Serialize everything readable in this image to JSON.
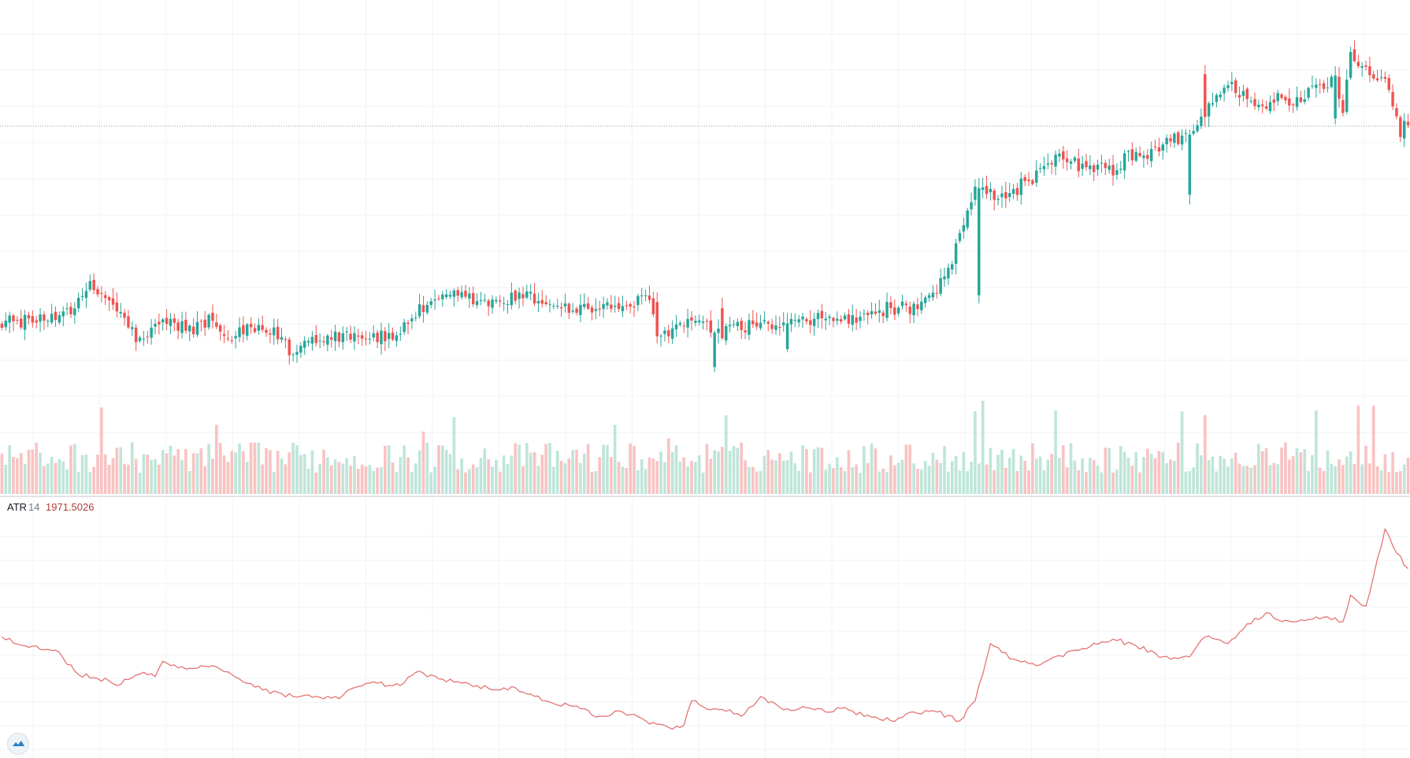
{
  "colors": {
    "up": "#26a69a",
    "down": "#ef5350",
    "up_volume": "#bfe5d9",
    "down_volume": "#f8c3c2",
    "grid": "#f0f3fa",
    "atr_line": "#e57373",
    "price_line": "#9598a1",
    "logo": "#2a7fc9"
  },
  "indicator_legend": {
    "name": "ATR",
    "period": "14",
    "value": "1971.5026"
  },
  "logo_icon": "tradingview-logo-icon",
  "chart_data": [
    {
      "type": "candlestick",
      "title": "",
      "xlabel": "",
      "ylabel": "",
      "ylim": [
        0,
        100
      ],
      "grid": true,
      "price_line": 73.5,
      "anchors": [
        [
          0,
          28
        ],
        [
          10,
          28
        ],
        [
          20,
          32
        ],
        [
          23,
          36
        ],
        [
          28,
          33
        ],
        [
          33,
          27
        ],
        [
          36,
          23
        ],
        [
          42,
          28
        ],
        [
          50,
          26
        ],
        [
          55,
          29
        ],
        [
          58,
          23
        ],
        [
          64,
          26
        ],
        [
          72,
          25
        ],
        [
          76,
          20
        ],
        [
          80,
          24
        ],
        [
          90,
          25
        ],
        [
          102,
          24
        ],
        [
          108,
          30
        ],
        [
          118,
          34
        ],
        [
          128,
          32
        ],
        [
          136,
          34
        ],
        [
          148,
          31
        ],
        [
          158,
          31
        ],
        [
          169,
          33
        ],
        [
          171,
          24
        ],
        [
          174,
          26
        ],
        [
          180,
          28
        ],
        [
          188,
          25
        ],
        [
          194,
          27
        ],
        [
          198,
          27
        ],
        [
          205,
          27
        ],
        [
          217,
          29
        ],
        [
          222,
          28
        ],
        [
          231,
          31
        ],
        [
          240,
          31
        ],
        [
          244,
          35
        ],
        [
          246,
          38
        ],
        [
          248,
          42
        ],
        [
          254,
          60
        ],
        [
          257,
          59
        ],
        [
          262,
          56
        ],
        [
          266,
          60
        ],
        [
          270,
          62
        ],
        [
          276,
          66
        ],
        [
          283,
          64
        ],
        [
          290,
          63
        ],
        [
          294,
          67
        ],
        [
          298,
          66
        ],
        [
          305,
          70
        ],
        [
          311,
          72
        ],
        [
          316,
          80
        ],
        [
          320,
          83
        ],
        [
          326,
          80
        ],
        [
          330,
          78
        ],
        [
          333,
          80
        ],
        [
          337,
          78
        ],
        [
          343,
          83
        ],
        [
          348,
          84
        ],
        [
          350,
          78
        ],
        [
          352,
          90
        ],
        [
          356,
          87
        ],
        [
          361,
          85
        ],
        [
          365,
          72
        ],
        [
          367,
          75
        ]
      ],
      "shocks": [
        {
          "bar": 171,
          "delta": -8
        },
        {
          "bar": 186,
          "delta": 8
        },
        {
          "bar": 188,
          "delta": -7
        },
        {
          "bar": 205,
          "delta": 6
        },
        {
          "bar": 255,
          "delta": 25
        },
        {
          "bar": 310,
          "delta": 14
        },
        {
          "bar": 314,
          "delta": -10
        },
        {
          "bar": 348,
          "delta": 10
        }
      ],
      "volume": {
        "ylim": [
          0,
          100
        ],
        "baseline": 22,
        "spikes": [
          {
            "bar": 26,
            "value": 90
          },
          {
            "bar": 56,
            "value": 72
          },
          {
            "bar": 110,
            "value": 65
          },
          {
            "bar": 118,
            "value": 80
          },
          {
            "bar": 160,
            "value": 72
          },
          {
            "bar": 174,
            "value": 58
          },
          {
            "bar": 189,
            "value": 82
          },
          {
            "bar": 254,
            "value": 86
          },
          {
            "bar": 256,
            "value": 97
          },
          {
            "bar": 275,
            "value": 87
          },
          {
            "bar": 308,
            "value": 86
          },
          {
            "bar": 314,
            "value": 82
          },
          {
            "bar": 343,
            "value": 87
          },
          {
            "bar": 354,
            "value": 92
          },
          {
            "bar": 358,
            "value": 92
          }
        ]
      },
      "bar_count": 368
    },
    {
      "type": "line",
      "title": "ATR 14",
      "xlabel": "",
      "ylabel": "",
      "ylim": [
        0,
        100
      ],
      "grid": true,
      "series": [
        {
          "name": "ATR 14",
          "points": [
            [
              0,
              47
            ],
            [
              6,
              43
            ],
            [
              14,
              41
            ],
            [
              20,
              30
            ],
            [
              28,
              27
            ],
            [
              30,
              25
            ],
            [
              37,
              31
            ],
            [
              40,
              29
            ],
            [
              42,
              36
            ],
            [
              46,
              33
            ],
            [
              55,
              34
            ],
            [
              60,
              30
            ],
            [
              68,
              23
            ],
            [
              76,
              20
            ],
            [
              88,
              19
            ],
            [
              92,
              24
            ],
            [
              98,
              26
            ],
            [
              104,
              25
            ],
            [
              108,
              31
            ],
            [
              114,
              28
            ],
            [
              124,
              25
            ],
            [
              128,
              23
            ],
            [
              134,
              24
            ],
            [
              142,
              18
            ],
            [
              148,
              16
            ],
            [
              156,
              11
            ],
            [
              162,
              13
            ],
            [
              168,
              9
            ],
            [
              174,
              6
            ],
            [
              178,
              7
            ],
            [
              180,
              18
            ],
            [
              185,
              14
            ],
            [
              190,
              14
            ],
            [
              193,
              11
            ],
            [
              198,
              20
            ],
            [
              204,
              14
            ],
            [
              210,
              15
            ],
            [
              215,
              13
            ],
            [
              220,
              15
            ],
            [
              225,
              11
            ],
            [
              232,
              9
            ],
            [
              238,
              13
            ],
            [
              244,
              13
            ],
            [
              250,
              9
            ],
            [
              254,
              18
            ],
            [
              258,
              44
            ],
            [
              264,
              37
            ],
            [
              270,
              34
            ],
            [
              280,
              41
            ],
            [
              290,
              46
            ],
            [
              296,
              43
            ],
            [
              303,
              38
            ],
            [
              310,
              38
            ],
            [
              314,
              47
            ],
            [
              320,
              44
            ],
            [
              325,
              53
            ],
            [
              330,
              58
            ],
            [
              334,
              54
            ],
            [
              338,
              54
            ],
            [
              342,
              55
            ],
            [
              345,
              56
            ],
            [
              350,
              54
            ],
            [
              352,
              66
            ],
            [
              356,
              61
            ],
            [
              361,
              96
            ],
            [
              364,
              85
            ],
            [
              367,
              78
            ]
          ]
        }
      ]
    }
  ]
}
